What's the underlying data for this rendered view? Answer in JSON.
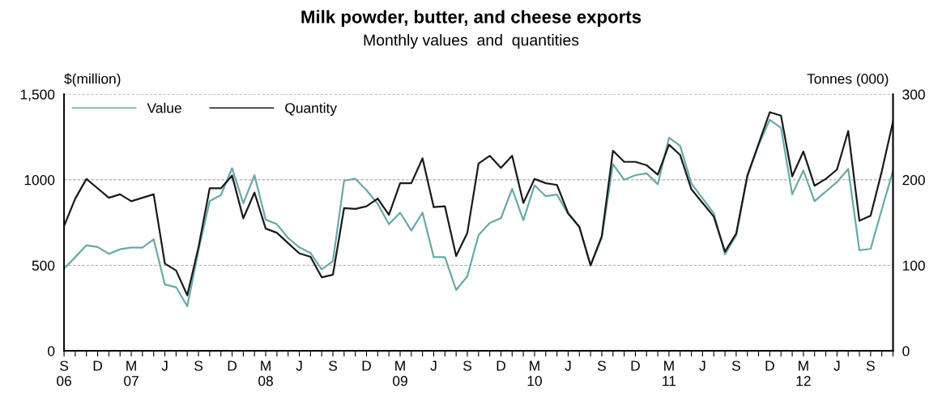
{
  "chart_data": {
    "type": "line",
    "title": "Milk powder, butter, and cheese exports",
    "subtitle": "Monthly values  and  quantities",
    "ylabel": "$(million)",
    "y2label": "Tonnes (000)",
    "categories": [
      "S\n06",
      null,
      null,
      "D",
      null,
      null,
      "M\n07",
      null,
      null,
      "J",
      null,
      null,
      "S",
      null,
      null,
      "D",
      null,
      null,
      "M\n08",
      null,
      null,
      "J",
      null,
      null,
      "S",
      null,
      null,
      "D",
      null,
      null,
      "M\n09",
      null,
      null,
      "J",
      null,
      null,
      "S",
      null,
      null,
      "D",
      null,
      null,
      "M\n10",
      null,
      null,
      "J",
      null,
      null,
      "S",
      null,
      null,
      "D",
      null,
      null,
      "M\n11",
      null,
      null,
      "J",
      null,
      null,
      "S",
      null,
      null,
      "D",
      null,
      null,
      "M\n12",
      null,
      null,
      "J",
      null,
      null,
      "S",
      null,
      null
    ],
    "series": [
      {
        "name": "Value",
        "color": "#6aa9a9",
        "values": [
          480,
          548,
          617,
          607,
          567,
          594,
          604,
          604,
          652,
          388,
          372,
          261,
          588,
          875,
          911,
          1067,
          863,
          1027,
          767,
          740,
          660,
          605,
          572,
          476,
          524,
          995,
          1006,
          939,
          859,
          740,
          808,
          703,
          808,
          548,
          548,
          356,
          436,
          676,
          748,
          776,
          947,
          764,
          968,
          904,
          914,
          799,
          724,
          500,
          660,
          1091,
          1000,
          1027,
          1038,
          974,
          1246,
          1198,
          979,
          891,
          804,
          564,
          676,
          1019,
          1203,
          1351,
          1303,
          915,
          1054,
          875,
          931,
          987,
          1064,
          588,
          596,
          827,
          1054
        ]
      },
      {
        "name": "Quantity",
        "color": "#1a1a1a",
        "axis": "y2",
        "values": [
          146,
          178,
          201,
          190,
          179,
          183,
          175,
          179,
          183,
          102,
          94,
          65,
          121,
          190,
          190,
          205,
          155,
          185,
          143,
          138,
          126,
          114,
          110,
          86,
          89,
          167,
          166,
          169,
          178,
          159,
          196,
          196,
          225,
          168,
          169,
          111,
          138,
          219,
          228,
          214,
          228,
          173,
          201,
          196,
          194,
          161,
          145,
          100,
          134,
          234,
          221,
          221,
          217,
          206,
          241,
          229,
          189,
          173,
          157,
          116,
          137,
          205,
          242,
          279,
          275,
          204,
          233,
          193,
          201,
          212,
          257,
          152,
          158,
          210,
          268
        ]
      }
    ],
    "ylim": [
      0,
      1500
    ],
    "yticks": [
      0,
      500,
      1000,
      {
        "value": 1500,
        "label": "1,500"
      }
    ],
    "y2lim": [
      0,
      300
    ],
    "y2ticks": [
      0,
      100,
      200,
      300
    ],
    "grid": "y",
    "legend": "top left"
  }
}
